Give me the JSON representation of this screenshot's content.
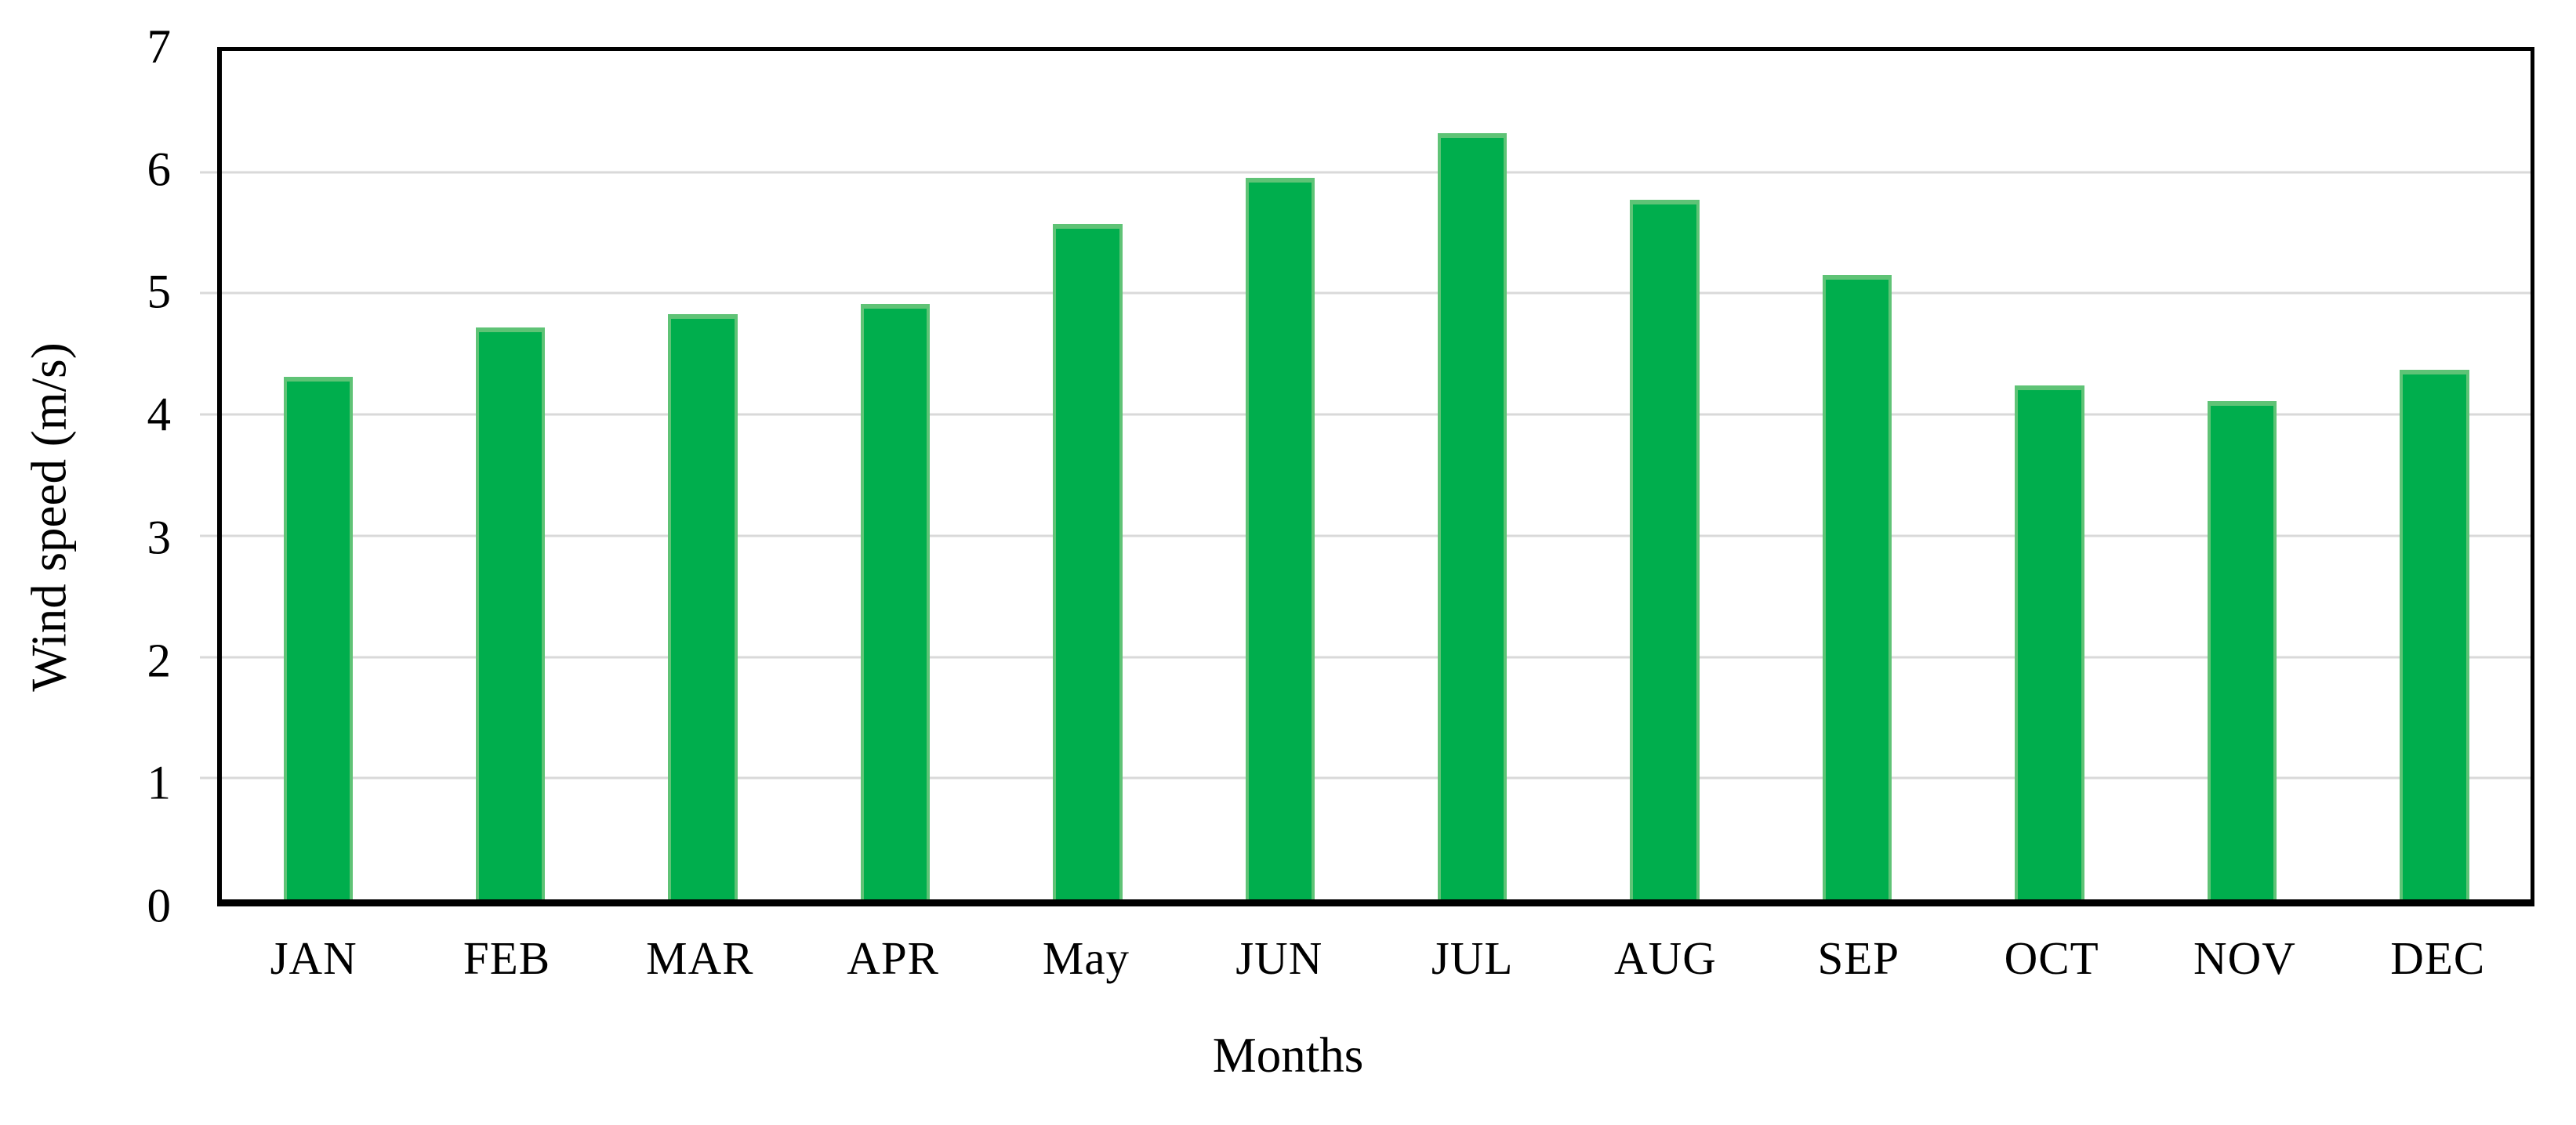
{
  "chart_data": {
    "type": "bar",
    "title": "",
    "categories": [
      "JAN",
      "FEB",
      "MAR",
      "APR",
      "May",
      "JUN",
      "JUL",
      "AUG",
      "SEP",
      "OCT",
      "NOV",
      "DEC"
    ],
    "values": [
      4.31,
      4.72,
      4.83,
      4.91,
      5.57,
      5.95,
      6.32,
      5.77,
      5.15,
      4.24,
      4.11,
      4.37
    ],
    "xlabel": "Months",
    "ylabel": "Wind speed (m/s)",
    "ylim": [
      0,
      7
    ],
    "yticks": [
      0,
      1,
      2,
      3,
      4,
      5,
      6,
      7
    ],
    "grid": true,
    "legend": false,
    "bar_color": "#00ae4d",
    "bar_edge_color": "#5fc376",
    "gridline_color": "#d9d9d9",
    "frame_color": "#000000",
    "text_color": "#000000"
  }
}
